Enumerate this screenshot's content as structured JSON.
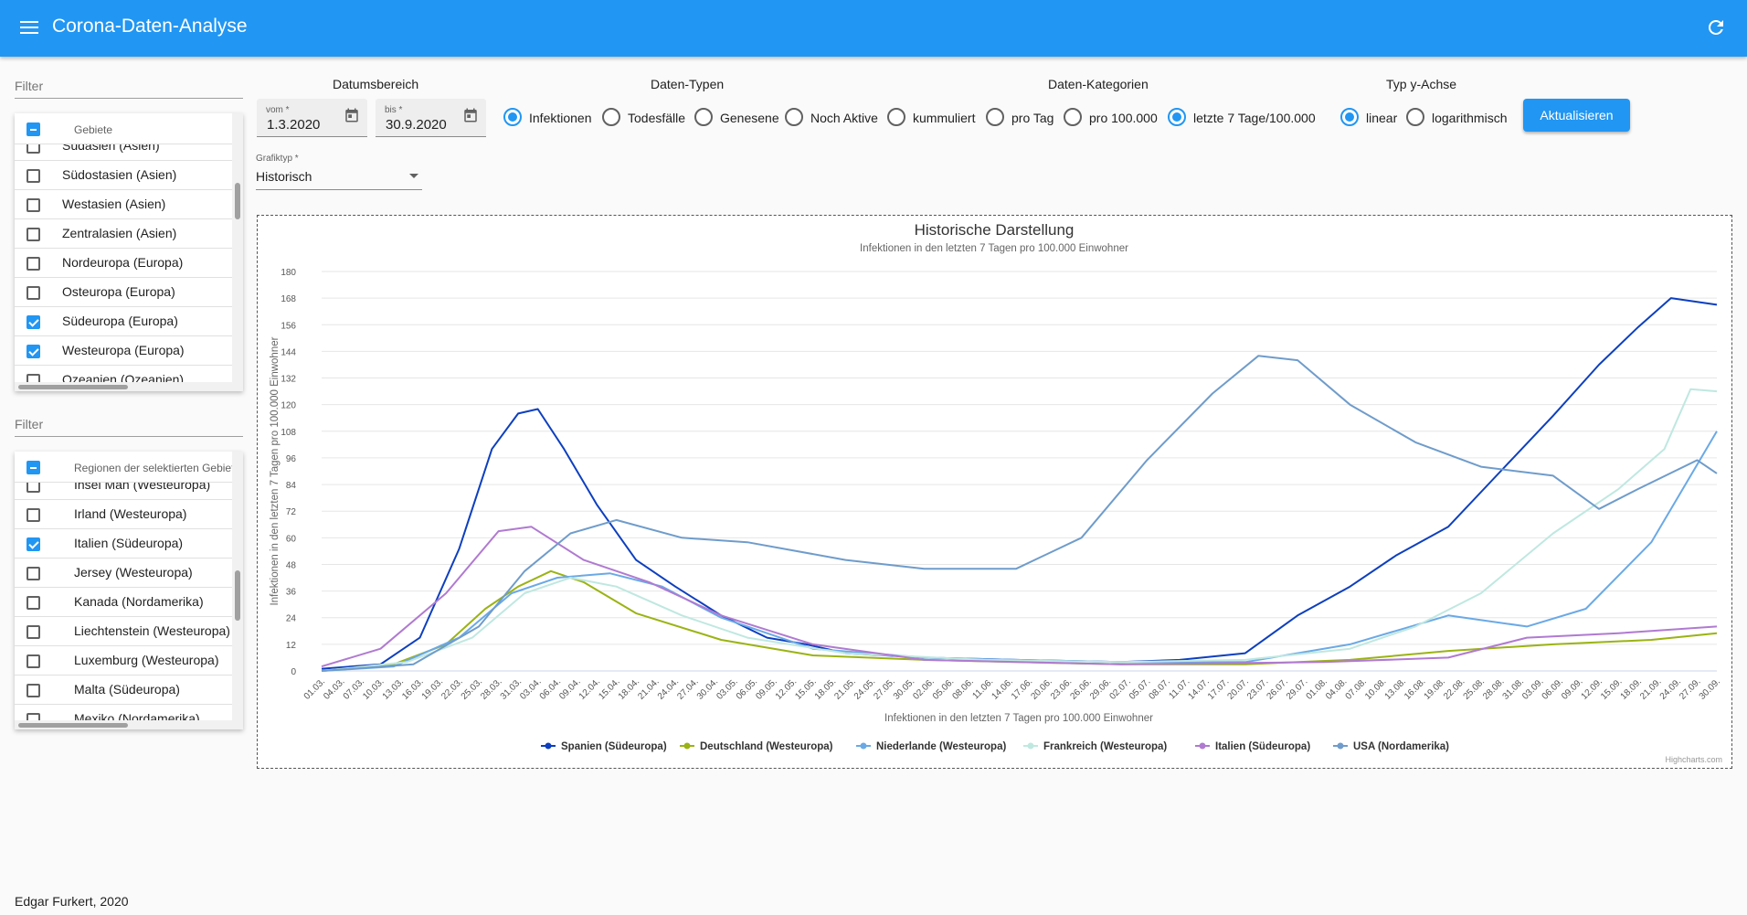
{
  "app": {
    "title": "Corona-Daten-Analyse"
  },
  "sidebar": {
    "filter1_placeholder": "Filter",
    "gebiete_header": "Gebiete",
    "gebiete": [
      {
        "label": "Südasien (Asien)",
        "checked": false
      },
      {
        "label": "Südostasien (Asien)",
        "checked": false
      },
      {
        "label": "Westasien (Asien)",
        "checked": false
      },
      {
        "label": "Zentralasien (Asien)",
        "checked": false
      },
      {
        "label": "Nordeuropa (Europa)",
        "checked": false
      },
      {
        "label": "Osteuropa (Europa)",
        "checked": false
      },
      {
        "label": "Südeuropa (Europa)",
        "checked": true
      },
      {
        "label": "Westeuropa (Europa)",
        "checked": true
      },
      {
        "label": "Ozeanien (Ozeanien)",
        "checked": false
      }
    ],
    "filter2_placeholder": "Filter",
    "regionen_header": "Regionen der selektierten Gebiete",
    "regionen": [
      {
        "label": "Insel Man (Westeuropa)",
        "checked": false
      },
      {
        "label": "Irland (Westeuropa)",
        "checked": false
      },
      {
        "label": "Italien (Südeuropa)",
        "checked": true
      },
      {
        "label": "Jersey (Westeuropa)",
        "checked": false
      },
      {
        "label": "Kanada (Nordamerika)",
        "checked": false
      },
      {
        "label": "Liechtenstein (Westeuropa)",
        "checked": false
      },
      {
        "label": "Luxemburg (Westeuropa)",
        "checked": false
      },
      {
        "label": "Malta (Südeuropa)",
        "checked": false
      },
      {
        "label": "Mexiko (Nordamerika)",
        "checked": false
      }
    ]
  },
  "controls": {
    "datumsbereich": {
      "label": "Datumsbereich",
      "from_label": "vom *",
      "from_value": "1.3.2020",
      "to_label": "bis *",
      "to_value": "30.9.2020"
    },
    "daten_typen": {
      "label": "Daten-Typen",
      "options": [
        "Infektionen",
        "Todesfälle",
        "Genesene",
        "Noch Aktive"
      ],
      "selected": "Infektionen"
    },
    "daten_kategorien": {
      "label": "Daten-Kategorien",
      "options": [
        "kummuliert",
        "pro Tag",
        "pro 100.000",
        "letzte 7 Tage/100.000"
      ],
      "selected": "letzte 7 Tage/100.000"
    },
    "typ_y_achse": {
      "label": "Typ y-Achse",
      "options": [
        "linear",
        "logarithmisch"
      ],
      "selected": "linear"
    },
    "update_button": "Aktualisieren",
    "grafiktyp": {
      "label": "Grafiktyp *",
      "value": "Historisch"
    }
  },
  "chart_data": {
    "type": "line",
    "title": "Historische Darstellung",
    "subtitle": "Infektionen in den letzten 7 Tagen pro 100.000 Einwohner",
    "xlabel": "Infektionen in den letzten 7 Tagen pro 100.000 Einwohner",
    "ylabel": "Infektionen in den letzten 7 Tagen pro 100.000 Einwohner",
    "ylim": [
      0,
      180
    ],
    "yticks": [
      0,
      12,
      24,
      36,
      48,
      60,
      72,
      84,
      96,
      108,
      120,
      132,
      144,
      156,
      168,
      180
    ],
    "grid": true,
    "legend_position": "bottom",
    "credits": "Highcharts.com",
    "x_tick_labels": [
      "01.03.",
      "04.03.",
      "07.03.",
      "10.03.",
      "13.03.",
      "16.03.",
      "19.03.",
      "22.03.",
      "25.03.",
      "28.03.",
      "31.03.",
      "03.04.",
      "06.04.",
      "09.04.",
      "12.04.",
      "15.04.",
      "18.04.",
      "21.04.",
      "24.04.",
      "27.04.",
      "30.04.",
      "03.05.",
      "06.05.",
      "09.05.",
      "12.05.",
      "15.05.",
      "18.05.",
      "21.05.",
      "24.05.",
      "27.05.",
      "30.05.",
      "02.06.",
      "05.06.",
      "08.06.",
      "11.06.",
      "14.06.",
      "17.06.",
      "20.06.",
      "23.06.",
      "26.06.",
      "29.06.",
      "02.07.",
      "05.07.",
      "08.07.",
      "11.07.",
      "14.07.",
      "17.07.",
      "20.07.",
      "23.07.",
      "26.07.",
      "29.07.",
      "01.08.",
      "04.08.",
      "07.08.",
      "10.08.",
      "13.08.",
      "16.08.",
      "19.08.",
      "22.08.",
      "25.08.",
      "28.08.",
      "31.08.",
      "03.09.",
      "06.09.",
      "09.09.",
      "12.09.",
      "15.09.",
      "18.09.",
      "21.09.",
      "24.09.",
      "27.09.",
      "30.09."
    ],
    "series": [
      {
        "name": "Spanien (Südeuropa)",
        "color": "#0d3fbf",
        "marker": "circle",
        "x": [
          "2020-03-01",
          "2020-03-10",
          "2020-03-16",
          "2020-03-22",
          "2020-03-27",
          "2020-03-31",
          "2020-04-03",
          "2020-04-07",
          "2020-04-12",
          "2020-04-18",
          "2020-04-24",
          "2020-05-01",
          "2020-05-08",
          "2020-05-14",
          "2020-05-20",
          "2020-06-01",
          "2020-06-15",
          "2020-07-01",
          "2020-07-10",
          "2020-07-20",
          "2020-07-28",
          "2020-08-05",
          "2020-08-12",
          "2020-08-20",
          "2020-08-28",
          "2020-09-05",
          "2020-09-12",
          "2020-09-18",
          "2020-09-23",
          "2020-09-30"
        ],
        "values": [
          1,
          3,
          15,
          55,
          100,
          116,
          118,
          100,
          75,
          50,
          38,
          25,
          15,
          12,
          8,
          6,
          5,
          4,
          5,
          8,
          25,
          38,
          52,
          65,
          90,
          115,
          138,
          155,
          168,
          165
        ]
      },
      {
        "name": "Deutschland (Westeuropa)",
        "color": "#9bb313",
        "marker": "diamond",
        "x": [
          "2020-03-01",
          "2020-03-12",
          "2020-03-20",
          "2020-03-26",
          "2020-03-31",
          "2020-04-05",
          "2020-04-10",
          "2020-04-18",
          "2020-05-01",
          "2020-05-15",
          "2020-06-01",
          "2020-06-15",
          "2020-07-01",
          "2020-07-20",
          "2020-08-05",
          "2020-08-20",
          "2020-09-05",
          "2020-09-20",
          "2020-09-30"
        ],
        "values": [
          0,
          3,
          12,
          28,
          38,
          45,
          40,
          26,
          14,
          7,
          5,
          4,
          3,
          3,
          5,
          9,
          12,
          14,
          17
        ]
      },
      {
        "name": "Niederlande (Westeuropa)",
        "color": "#6aa9e6",
        "marker": "square",
        "x": [
          "2020-03-01",
          "2020-03-12",
          "2020-03-22",
          "2020-03-30",
          "2020-04-06",
          "2020-04-14",
          "2020-04-22",
          "2020-05-01",
          "2020-05-15",
          "2020-06-01",
          "2020-06-15",
          "2020-07-01",
          "2020-07-20",
          "2020-08-05",
          "2020-08-20",
          "2020-09-01",
          "2020-09-10",
          "2020-09-20",
          "2020-09-30"
        ],
        "values": [
          0,
          2,
          15,
          35,
          42,
          44,
          38,
          24,
          10,
          6,
          5,
          4,
          4,
          12,
          25,
          20,
          28,
          58,
          108
        ]
      },
      {
        "name": "Frankreich (Westeuropa)",
        "color": "#bfe8e0",
        "marker": "triangle",
        "x": [
          "2020-03-01",
          "2020-03-14",
          "2020-03-24",
          "2020-04-01",
          "2020-04-08",
          "2020-04-15",
          "2020-04-25",
          "2020-05-05",
          "2020-05-20",
          "2020-06-10",
          "2020-07-01",
          "2020-07-20",
          "2020-08-05",
          "2020-08-15",
          "2020-08-25",
          "2020-09-05",
          "2020-09-15",
          "2020-09-22",
          "2020-09-26",
          "2020-09-30"
        ],
        "values": [
          0,
          4,
          15,
          35,
          42,
          38,
          25,
          15,
          8,
          5,
          4,
          5,
          10,
          20,
          35,
          62,
          82,
          100,
          127,
          126
        ]
      },
      {
        "name": "Italien (Südeuropa)",
        "color": "#b07ad1",
        "marker": "triangle-down",
        "x": [
          "2020-03-01",
          "2020-03-10",
          "2020-03-20",
          "2020-03-28",
          "2020-04-02",
          "2020-04-10",
          "2020-04-20",
          "2020-05-01",
          "2020-05-15",
          "2020-06-01",
          "2020-07-01",
          "2020-08-01",
          "2020-08-20",
          "2020-09-01",
          "2020-09-15",
          "2020-09-30"
        ],
        "values": [
          2,
          10,
          35,
          63,
          65,
          50,
          40,
          25,
          12,
          5,
          3,
          4,
          6,
          15,
          17,
          20
        ]
      },
      {
        "name": "USA (Nordamerika)",
        "color": "#6f9ccb",
        "marker": "circle",
        "x": [
          "2020-03-01",
          "2020-03-15",
          "2020-03-25",
          "2020-04-01",
          "2020-04-08",
          "2020-04-15",
          "2020-04-25",
          "2020-05-05",
          "2020-05-20",
          "2020-06-01",
          "2020-06-15",
          "2020-06-25",
          "2020-07-05",
          "2020-07-15",
          "2020-07-22",
          "2020-07-28",
          "2020-08-05",
          "2020-08-15",
          "2020-08-25",
          "2020-09-05",
          "2020-09-12",
          "2020-09-18",
          "2020-09-27",
          "2020-09-30"
        ],
        "values": [
          0,
          3,
          20,
          45,
          62,
          68,
          60,
          58,
          50,
          46,
          46,
          60,
          95,
          125,
          142,
          140,
          120,
          103,
          92,
          88,
          73,
          82,
          95,
          89
        ]
      }
    ]
  },
  "footer": "Edgar Furkert, 2020"
}
